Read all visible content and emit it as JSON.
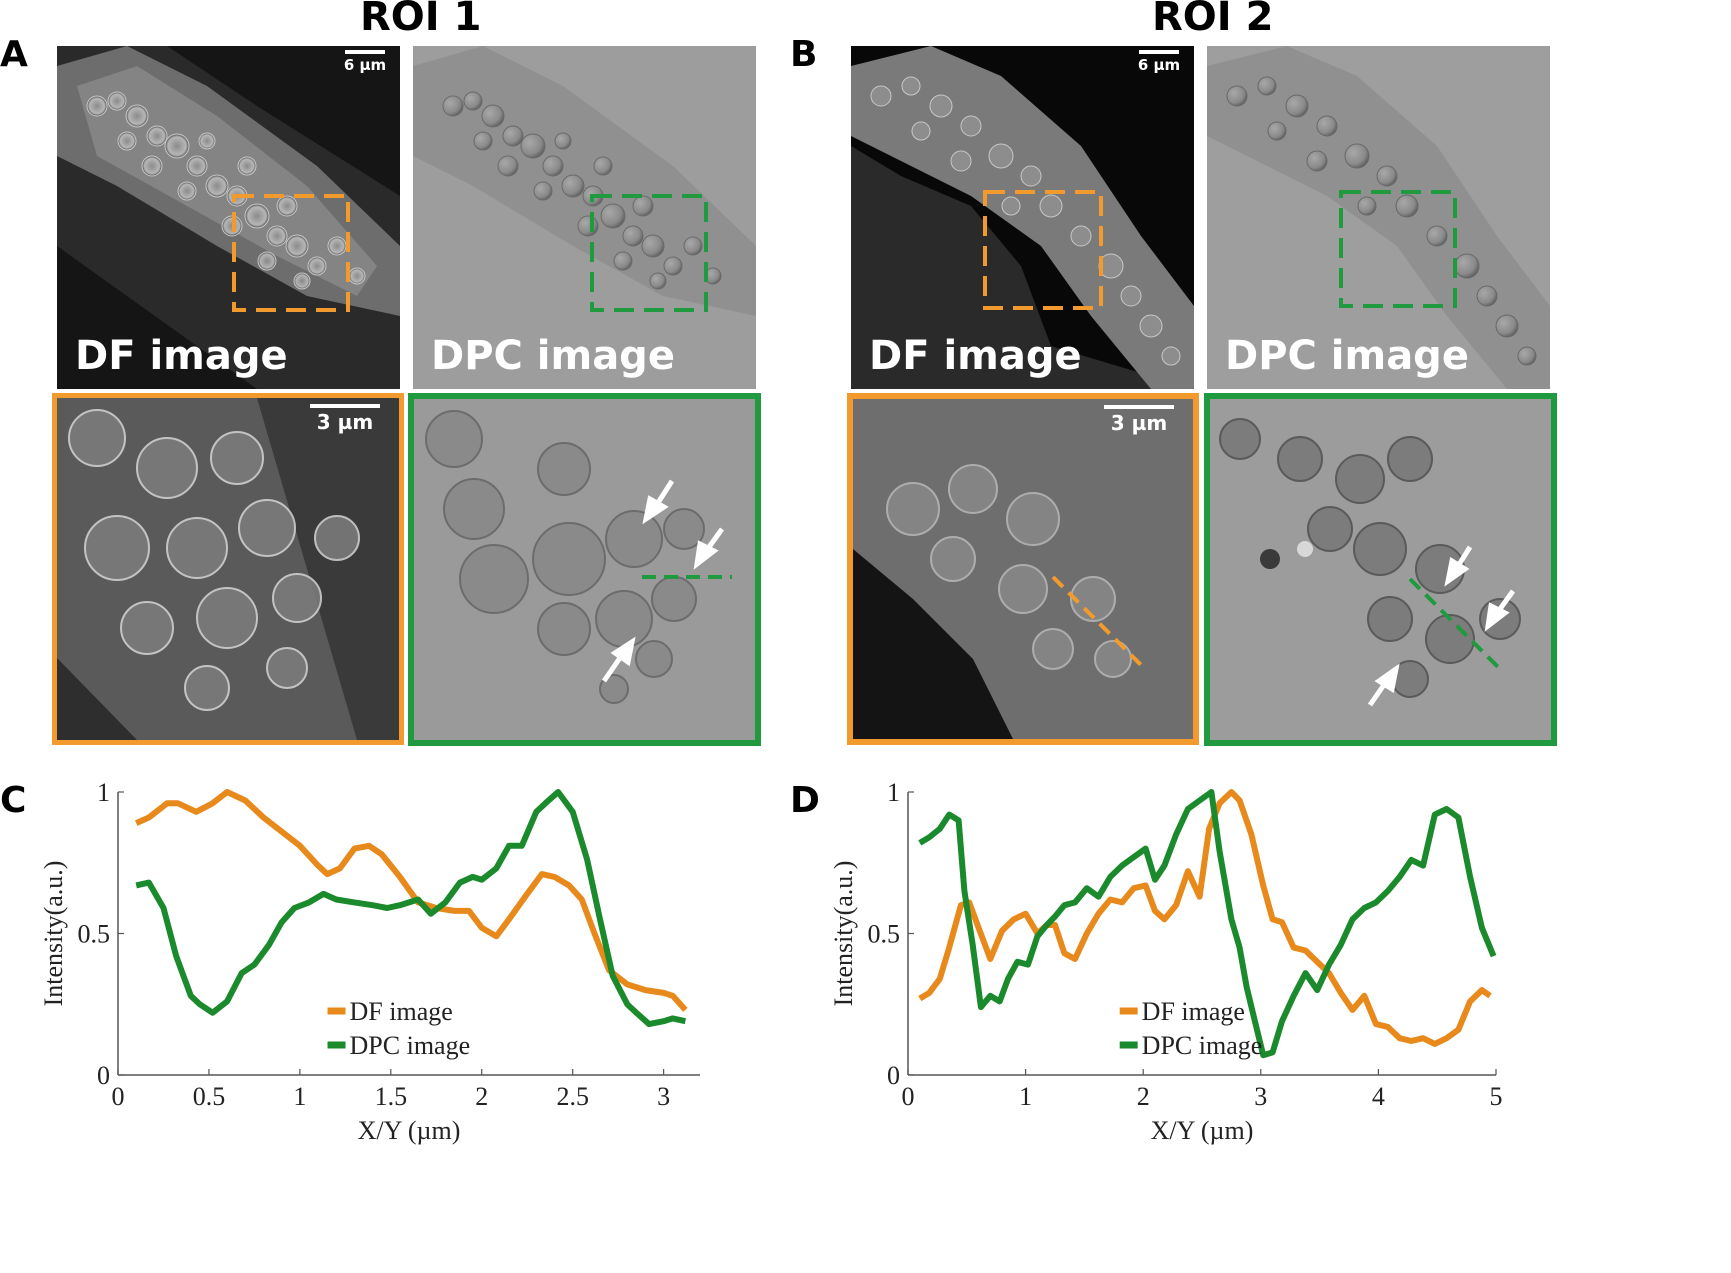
{
  "panel_a": {
    "letter": "A",
    "roi_title": "ROI 1",
    "df_label": "DF image",
    "dpc_label": "DPC image",
    "scale_top": "6 µm",
    "scale_zoom": "3 µm"
  },
  "panel_b": {
    "letter": "B",
    "roi_title": "ROI 2",
    "df_label": "DF image",
    "dpc_label": "DPC image",
    "scale_top": "6 µm",
    "scale_zoom": "3 µm"
  },
  "colors": {
    "df": "#e8891c",
    "dpc": "#1b8a2c",
    "orange_box": "#f29a2e",
    "green_box": "#1f9a3f"
  },
  "chart_data": [
    {
      "panel": "C",
      "type": "line",
      "xlabel": "X/Y (µm)",
      "ylabel": "Intensity(a.u.)",
      "xlim": [
        0,
        3.2
      ],
      "ylim": [
        0,
        1
      ],
      "xticks": [
        "0",
        "0.5",
        "1",
        "1.5",
        "2",
        "2.5",
        "3"
      ],
      "yticks": [
        "0",
        "0.5",
        "1"
      ],
      "legend_placement": "bottom-center",
      "series": [
        {
          "name": "DF image",
          "x": [
            0.1,
            0.17,
            0.27,
            0.33,
            0.43,
            0.52,
            0.6,
            0.7,
            0.8,
            0.9,
            1.0,
            1.1,
            1.15,
            1.22,
            1.3,
            1.38,
            1.45,
            1.55,
            1.65,
            1.75,
            1.85,
            1.93,
            2.0,
            2.08,
            2.15,
            2.25,
            2.33,
            2.4,
            2.48,
            2.55,
            2.62,
            2.7,
            2.8,
            2.9,
            3.0,
            3.05,
            3.12
          ],
          "y": [
            0.89,
            0.91,
            0.96,
            0.96,
            0.93,
            0.96,
            1.0,
            0.97,
            0.91,
            0.86,
            0.81,
            0.74,
            0.71,
            0.73,
            0.8,
            0.81,
            0.78,
            0.7,
            0.61,
            0.59,
            0.58,
            0.58,
            0.52,
            0.49,
            0.55,
            0.64,
            0.71,
            0.7,
            0.67,
            0.62,
            0.5,
            0.37,
            0.32,
            0.3,
            0.29,
            0.28,
            0.23
          ]
        },
        {
          "name": "DPC image",
          "x": [
            0.1,
            0.17,
            0.25,
            0.32,
            0.4,
            0.45,
            0.52,
            0.6,
            0.68,
            0.75,
            0.83,
            0.9,
            0.97,
            1.05,
            1.13,
            1.2,
            1.3,
            1.4,
            1.48,
            1.55,
            1.65,
            1.72,
            1.8,
            1.88,
            1.95,
            2.0,
            2.08,
            2.15,
            2.22,
            2.3,
            2.35,
            2.42,
            2.5,
            2.58,
            2.65,
            2.72,
            2.8,
            2.85,
            2.92,
            3.0,
            3.05,
            3.12
          ],
          "y": [
            0.67,
            0.68,
            0.59,
            0.42,
            0.28,
            0.25,
            0.22,
            0.26,
            0.36,
            0.39,
            0.46,
            0.54,
            0.59,
            0.61,
            0.64,
            0.62,
            0.61,
            0.6,
            0.59,
            0.6,
            0.62,
            0.57,
            0.61,
            0.68,
            0.7,
            0.69,
            0.73,
            0.81,
            0.81,
            0.93,
            0.96,
            1.0,
            0.93,
            0.76,
            0.55,
            0.35,
            0.25,
            0.22,
            0.18,
            0.19,
            0.2,
            0.19
          ]
        }
      ]
    },
    {
      "panel": "D",
      "type": "line",
      "xlabel": "X/Y (µm)",
      "ylabel": "Intensity(a.u.)",
      "xlim": [
        0,
        5
      ],
      "ylim": [
        0,
        1
      ],
      "xticks": [
        "0",
        "1",
        "2",
        "3",
        "4",
        "5"
      ],
      "yticks": [
        "0",
        "0.5",
        "1"
      ],
      "legend_placement": "bottom-center",
      "series": [
        {
          "name": "DF image",
          "x": [
            0.1,
            0.18,
            0.27,
            0.35,
            0.45,
            0.52,
            0.6,
            0.7,
            0.8,
            0.9,
            1.0,
            1.1,
            1.18,
            1.25,
            1.33,
            1.42,
            1.52,
            1.62,
            1.72,
            1.82,
            1.92,
            2.02,
            2.1,
            2.18,
            2.28,
            2.38,
            2.48,
            2.56,
            2.65,
            2.75,
            2.82,
            2.92,
            3.02,
            3.1,
            3.18,
            3.28,
            3.38,
            3.48,
            3.58,
            3.68,
            3.78,
            3.88,
            3.98,
            4.08,
            4.18,
            4.28,
            4.38,
            4.48,
            4.58,
            4.68,
            4.78,
            4.88,
            4.95
          ],
          "y": [
            0.27,
            0.29,
            0.34,
            0.45,
            0.6,
            0.61,
            0.52,
            0.41,
            0.51,
            0.55,
            0.57,
            0.5,
            0.53,
            0.53,
            0.43,
            0.41,
            0.5,
            0.57,
            0.62,
            0.61,
            0.66,
            0.67,
            0.58,
            0.55,
            0.6,
            0.72,
            0.63,
            0.87,
            0.96,
            1.0,
            0.97,
            0.85,
            0.67,
            0.55,
            0.54,
            0.45,
            0.44,
            0.4,
            0.36,
            0.29,
            0.23,
            0.28,
            0.18,
            0.17,
            0.13,
            0.12,
            0.13,
            0.11,
            0.13,
            0.16,
            0.26,
            0.3,
            0.28
          ]
        },
        {
          "name": "DPC image",
          "x": [
            0.1,
            0.18,
            0.27,
            0.35,
            0.43,
            0.48,
            0.55,
            0.62,
            0.7,
            0.78,
            0.85,
            0.93,
            1.02,
            1.1,
            1.18,
            1.25,
            1.33,
            1.42,
            1.52,
            1.62,
            1.72,
            1.82,
            1.92,
            2.02,
            2.1,
            2.18,
            2.28,
            2.38,
            2.48,
            2.58,
            2.65,
            2.75,
            2.82,
            2.88,
            2.95,
            3.02,
            3.1,
            3.18,
            3.28,
            3.38,
            3.48,
            3.58,
            3.68,
            3.78,
            3.88,
            3.98,
            4.08,
            4.18,
            4.28,
            4.38,
            4.48,
            4.58,
            4.68,
            4.78,
            4.88,
            4.98
          ],
          "y": [
            0.82,
            0.84,
            0.87,
            0.92,
            0.9,
            0.65,
            0.46,
            0.24,
            0.28,
            0.26,
            0.34,
            0.4,
            0.39,
            0.49,
            0.53,
            0.56,
            0.6,
            0.61,
            0.66,
            0.63,
            0.7,
            0.74,
            0.77,
            0.8,
            0.69,
            0.74,
            0.85,
            0.94,
            0.97,
            1.0,
            0.79,
            0.55,
            0.45,
            0.31,
            0.19,
            0.07,
            0.08,
            0.19,
            0.28,
            0.36,
            0.3,
            0.39,
            0.46,
            0.55,
            0.59,
            0.61,
            0.65,
            0.7,
            0.76,
            0.74,
            0.92,
            0.94,
            0.91,
            0.7,
            0.52,
            0.42
          ]
        }
      ]
    }
  ]
}
